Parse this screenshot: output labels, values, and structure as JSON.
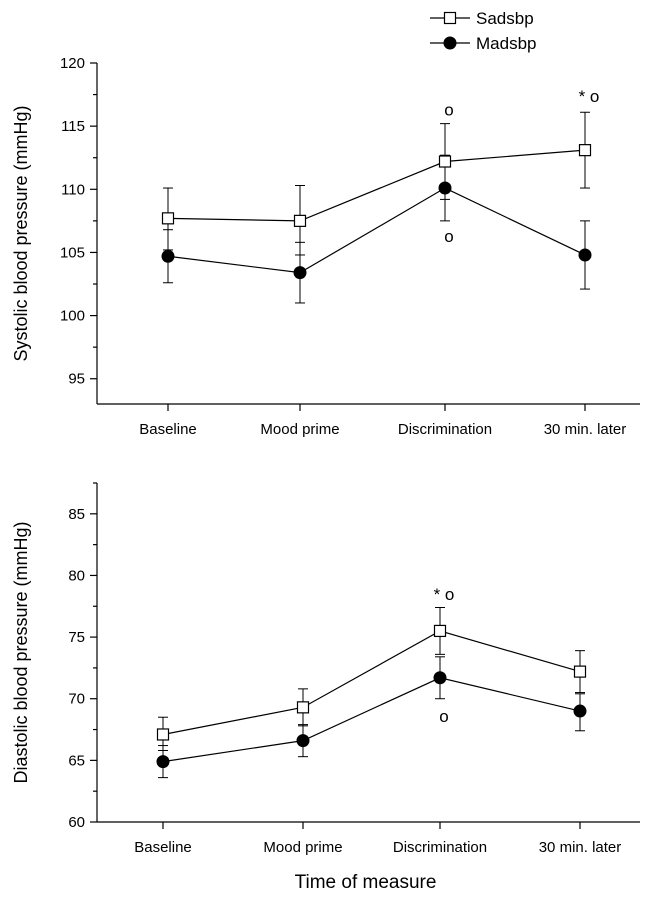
{
  "chart_data": [
    {
      "type": "line",
      "ylabel": "Systolic blood pressure (mmHg)",
      "xlabel": "",
      "categories": [
        "Baseline",
        "Mood prime",
        "Discrimination",
        "30 min. later"
      ],
      "ylim": [
        93,
        120
      ],
      "yticks": [
        95,
        100,
        105,
        110,
        115,
        120
      ],
      "series": [
        {
          "name": "Sadsbp",
          "marker": "open-square",
          "values": [
            107.7,
            107.5,
            112.2,
            113.1
          ],
          "err_lower": [
            2.5,
            2.7,
            3.0,
            3.0
          ],
          "err_upper": [
            2.4,
            2.8,
            3.0,
            3.0
          ]
        },
        {
          "name": "Madsbp",
          "marker": "filled-circle",
          "values": [
            104.7,
            103.4,
            110.1,
            104.8
          ],
          "err_lower": [
            2.1,
            2.4,
            2.6,
            2.7
          ],
          "err_upper": [
            2.1,
            2.4,
            2.6,
            2.7
          ]
        }
      ],
      "annotations": [
        {
          "category": "Discrimination",
          "text": "o",
          "y": 116.3
        },
        {
          "category": "Discrimination",
          "text": "o",
          "y": 106.3
        },
        {
          "category": "30 min. later",
          "text": "* o",
          "y": 117.4
        }
      ]
    },
    {
      "type": "line",
      "ylabel": "Diastolic blood pressure (mmHg)",
      "xlabel": "Time of measure",
      "categories": [
        "Baseline",
        "Mood prime",
        "Discrimination",
        "30 min. later"
      ],
      "ylim": [
        60,
        87.5
      ],
      "yticks": [
        60,
        65,
        70,
        75,
        80,
        85
      ],
      "series": [
        {
          "name": "Sadsbp",
          "marker": "open-square",
          "values": [
            67.1,
            69.3,
            75.5,
            72.2
          ],
          "err_lower": [
            1.3,
            1.5,
            1.9,
            1.7
          ],
          "err_upper": [
            1.4,
            1.5,
            1.9,
            1.7
          ]
        },
        {
          "name": "Madsbp",
          "marker": "filled-circle",
          "values": [
            64.9,
            66.6,
            71.7,
            69.0
          ],
          "err_lower": [
            1.3,
            1.3,
            1.7,
            1.6
          ],
          "err_upper": [
            1.3,
            1.3,
            1.7,
            1.4
          ]
        }
      ],
      "annotations": [
        {
          "category": "Discrimination",
          "text": "* o",
          "y": 78.5
        },
        {
          "category": "Discrimination",
          "text": "o",
          "y": 68.6
        }
      ]
    }
  ],
  "legend": {
    "items": [
      {
        "label": "Sadsbp",
        "marker": "open-square"
      },
      {
        "label": "Madsbp",
        "marker": "filled-circle"
      }
    ]
  }
}
